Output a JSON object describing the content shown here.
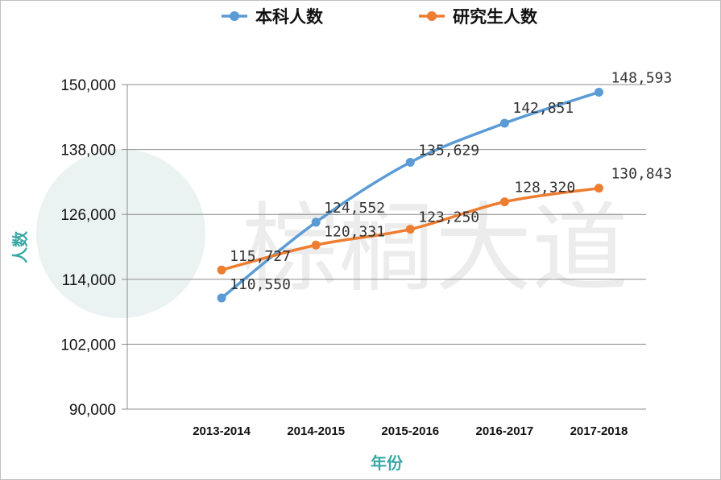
{
  "watermark": {
    "text": "棕榈大道"
  },
  "chart_data": {
    "type": "line",
    "categories": [
      "2013-2014",
      "2014-2015",
      "2015-2016",
      "2016-2017",
      "2017-2018"
    ],
    "series": [
      {
        "name": "本科人数",
        "color": "#5b9bd5",
        "values": [
          110550,
          124552,
          135629,
          142851,
          148593
        ],
        "labels": [
          "110,550",
          "124,552",
          "135,629",
          "142,851",
          "148,593"
        ]
      },
      {
        "name": "研究生人数",
        "color": "#ed7d31",
        "values": [
          115727,
          120331,
          123250,
          128320,
          130843
        ],
        "labels": [
          "115,727",
          "120,331",
          "123,250",
          "128,320",
          "130,843"
        ]
      }
    ],
    "ylim": [
      90000,
      150000
    ],
    "yticks": [
      90000,
      102000,
      114000,
      126000,
      138000,
      150000
    ],
    "ytick_labels": [
      "90,000",
      "102,000",
      "114,000",
      "126,000",
      "138,000",
      "150,000"
    ],
    "xlabel": "年份",
    "ylabel": "人数",
    "legend_position": "top",
    "grid": true
  }
}
